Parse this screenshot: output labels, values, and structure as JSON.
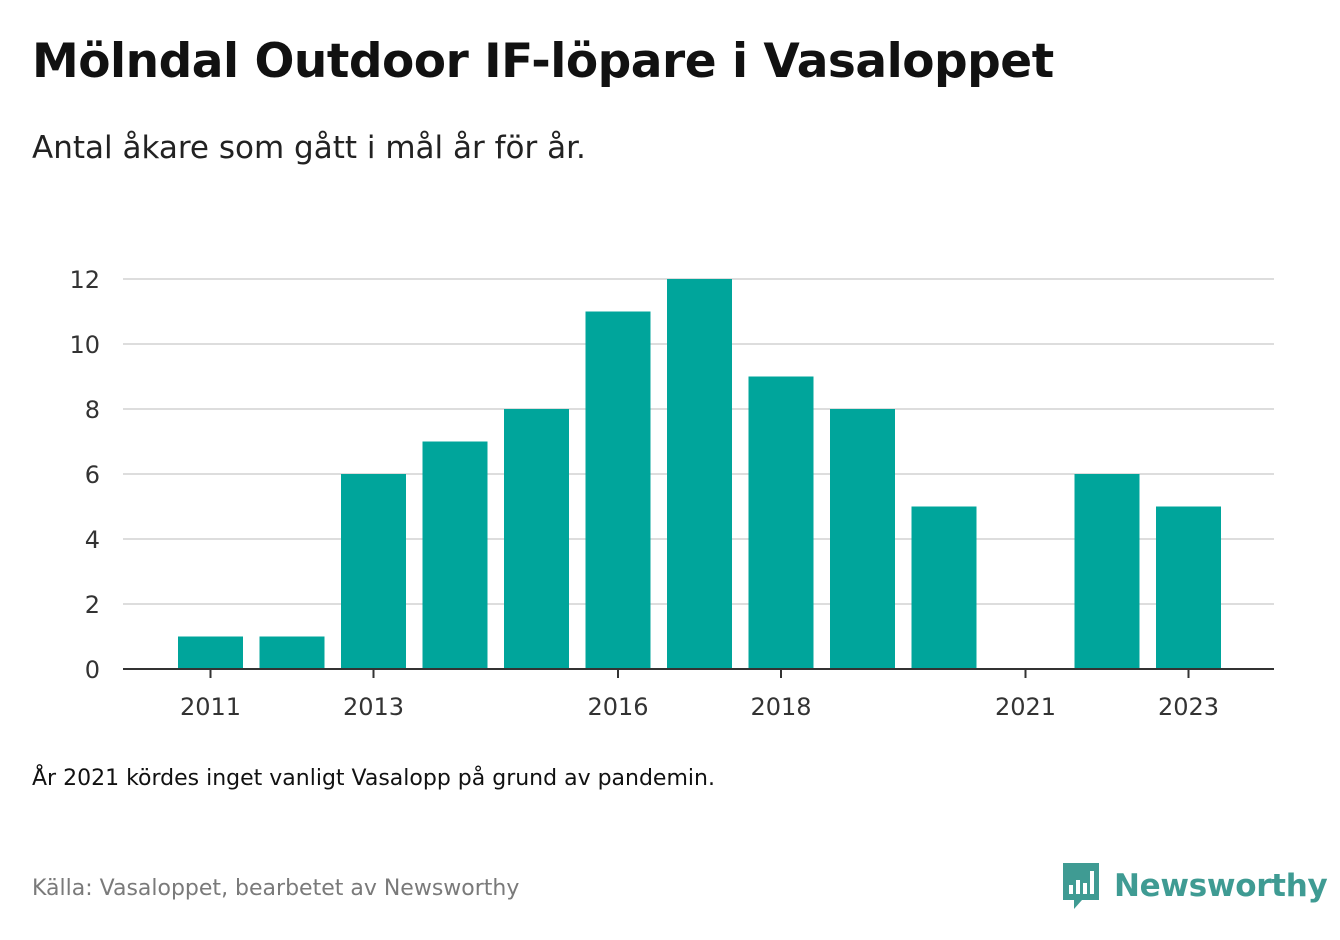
{
  "header": {
    "title": "Mölndal Outdoor IF-löpare i Vasaloppet",
    "subtitle": "Antal åkare som gått i mål år för år."
  },
  "footer": {
    "note": "År 2021 kördes inget vanligt Vasalopp på grund av pandemin.",
    "source": "Källa: Vasaloppet, bearbetet av Newsworthy",
    "brand": "Newsworthy",
    "brand_icon": "newsworthy-logo-icon"
  },
  "colors": {
    "bar": "#00a59b",
    "brand": "#3f9b93",
    "grid": "#dddddd",
    "axis": "#333333"
  },
  "chart_data": {
    "type": "bar",
    "title": "Mölndal Outdoor IF-löpare i Vasaloppet",
    "subtitle": "Antal åkare som gått i mål år för år.",
    "xlabel": "",
    "ylabel": "",
    "categories": [
      "2011",
      "2012",
      "2013",
      "2014",
      "2015",
      "2016",
      "2017",
      "2018",
      "2019",
      "2020",
      "2021",
      "2022",
      "2023"
    ],
    "values": [
      1,
      1,
      6,
      7,
      8,
      11,
      12,
      9,
      8,
      5,
      0,
      6,
      5
    ],
    "x_tick_labels": [
      "2011",
      "2013",
      "2016",
      "2018",
      "2021",
      "2023"
    ],
    "y_ticks": [
      0,
      2,
      4,
      6,
      8,
      10,
      12
    ],
    "ylim": [
      0,
      12
    ],
    "grid": true
  }
}
